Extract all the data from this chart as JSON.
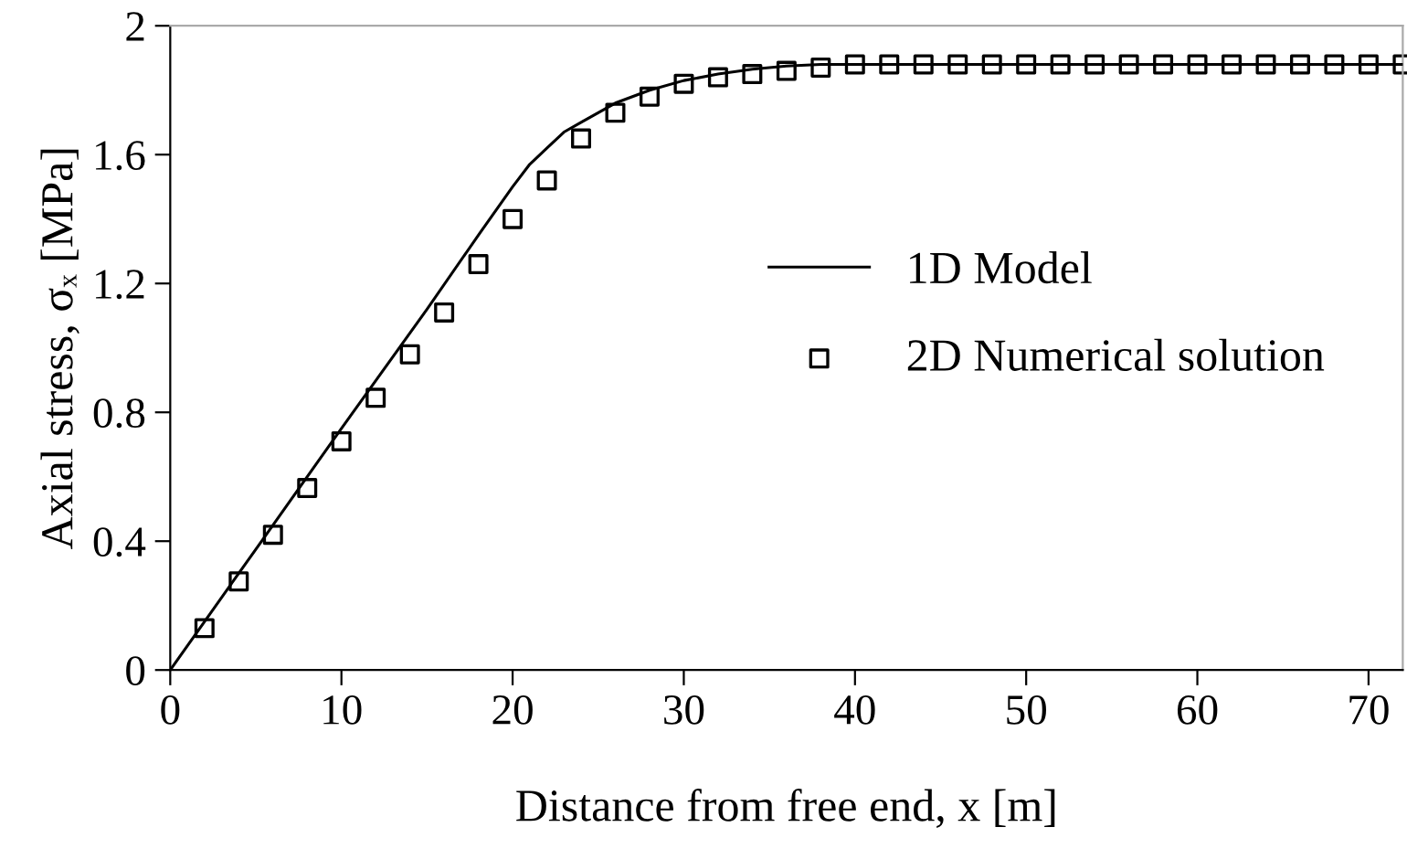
{
  "chart_data": {
    "type": "line",
    "xlabel": "Distance from free end, x [m]",
    "ylabel": "Axial stress, σₓ [MPa]",
    "xlim": [
      0,
      72
    ],
    "xticks": [
      0,
      10,
      20,
      30,
      40,
      50,
      60,
      70
    ],
    "ylim": [
      0,
      2
    ],
    "yticks": [
      0,
      0.4,
      0.8,
      1.2,
      1.6,
      2
    ],
    "grid": false,
    "legend": "right",
    "series": [
      {
        "name": "1D Model",
        "color": "#000000",
        "marker": "none",
        "line_style": "solid",
        "x": [
          0,
          5,
          10,
          15,
          18,
          20,
          21,
          22,
          23,
          24,
          26,
          28,
          30,
          32,
          34,
          36,
          38,
          40,
          72
        ],
        "values": [
          0,
          0.375,
          0.75,
          1.12,
          1.35,
          1.5,
          1.57,
          1.62,
          1.67,
          1.7,
          1.76,
          1.8,
          1.83,
          1.85,
          1.865,
          1.875,
          1.88,
          1.88,
          1.88
        ]
      },
      {
        "name": "2D Numerical solution",
        "type": "scatter",
        "color": "#000000",
        "marker": "square",
        "x": [
          2,
          4,
          6,
          8,
          10,
          12,
          14,
          16,
          18,
          20,
          22,
          24,
          26,
          28,
          30,
          32,
          34,
          36,
          38,
          40,
          42,
          44,
          46,
          48,
          50,
          52,
          54,
          56,
          58,
          60,
          62,
          64,
          66,
          68,
          70,
          72
        ],
        "values": [
          0.13,
          0.275,
          0.42,
          0.565,
          0.71,
          0.845,
          0.98,
          1.11,
          1.26,
          1.4,
          1.52,
          1.65,
          1.73,
          1.78,
          1.82,
          1.84,
          1.85,
          1.86,
          1.87,
          1.88,
          1.88,
          1.88,
          1.88,
          1.88,
          1.88,
          1.88,
          1.88,
          1.88,
          1.88,
          1.88,
          1.88,
          1.88,
          1.88,
          1.88,
          1.88,
          1.88
        ]
      }
    ]
  }
}
